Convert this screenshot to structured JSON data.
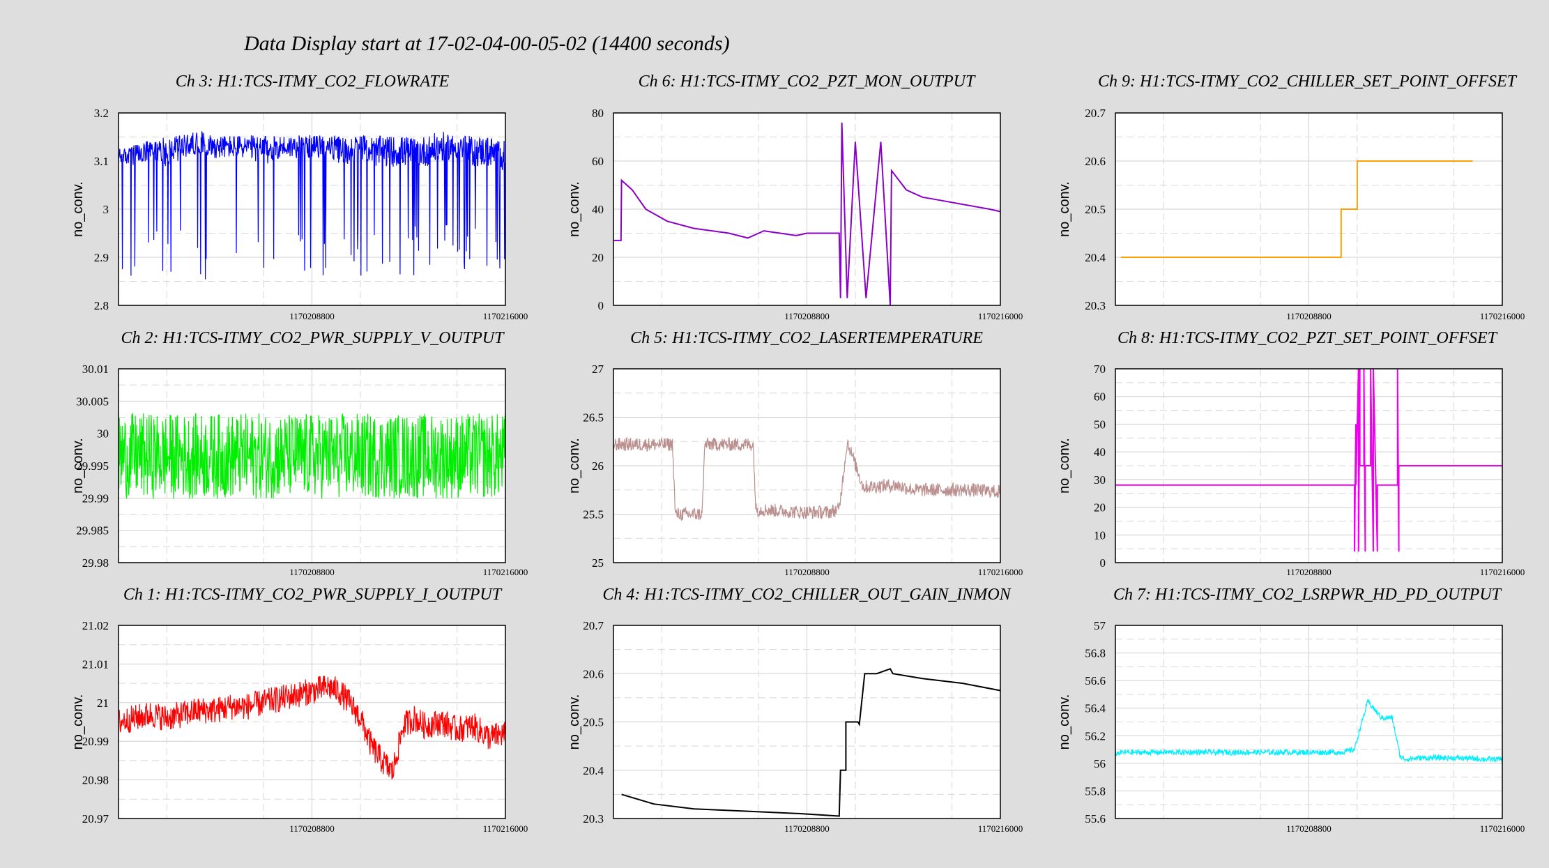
{
  "header": {
    "title": "Data Display start at 17-02-04-00-05-02 (14400 seconds)"
  },
  "chart_data": [
    {
      "type": "line",
      "title": "Ch 3: H1:TCS-ITMY_CO2_FLOWRATE",
      "ylabel": "no_conv.",
      "ylim": [
        2.8,
        3.2
      ],
      "yticks": [
        "2.8",
        "2.9",
        "3",
        "3.1",
        "3.2"
      ],
      "xticks": [
        "1170208800",
        "1170216000"
      ],
      "color": "#0000ff",
      "series": [
        {
          "x": [
            0,
            180,
            600,
            1200,
            1800,
            2400,
            3000,
            3600,
            4200,
            4800,
            5400,
            6000,
            6600,
            7200,
            7800,
            8400,
            9000,
            9600,
            10200,
            10800,
            11400,
            12000,
            12600,
            13200,
            13800,
            14400
          ],
          "y": [
            3.11,
            3.11,
            3.11,
            3.12,
            3.12,
            3.13,
            3.14,
            3.13,
            3.13,
            3.13,
            3.12,
            3.13,
            3.13,
            3.13,
            3.13,
            3.12,
            3.13,
            3.12,
            3.12,
            3.12,
            3.12,
            3.13,
            3.13,
            3.12,
            3.12,
            3.11
          ],
          "lower_envelope": [
            2.87,
            2.86,
            2.85,
            2.86,
            2.86,
            2.86,
            2.84,
            2.86,
            2.85,
            2.86,
            2.86,
            2.86,
            2.86,
            2.86,
            2.86,
            2.86,
            2.86,
            2.86,
            2.86,
            2.86,
            2.86,
            2.86,
            2.86,
            2.86,
            2.87,
            2.87
          ],
          "upper_envelope": [
            3.13,
            3.13,
            3.14,
            3.15,
            3.16,
            3.16,
            3.17,
            3.16,
            3.16,
            3.16,
            3.16,
            3.16,
            3.16,
            3.16,
            3.16,
            3.16,
            3.16,
            3.16,
            3.16,
            3.16,
            3.16,
            3.17,
            3.16,
            3.16,
            3.16,
            3.15
          ]
        }
      ]
    },
    {
      "type": "line",
      "title": "Ch 6: H1:TCS-ITMY_CO2_PZT_MON_OUTPUT",
      "ylabel": "no_conv.",
      "ylim": [
        0,
        80
      ],
      "yticks": [
        "0",
        "20",
        "40",
        "60",
        "80"
      ],
      "xticks": [
        "1170208800",
        "1170216000"
      ],
      "color": "#8b00c9",
      "series": [
        {
          "x": [
            0,
            280,
            300,
            700,
            1200,
            2000,
            3000,
            4300,
            5000,
            5600,
            6200,
            6800,
            7200,
            7800,
            8400,
            8450,
            8500,
            8700,
            9000,
            9400,
            9950,
            10300,
            10350,
            10900,
            11500,
            12000,
            13000,
            14000,
            14400
          ],
          "y": [
            27,
            27,
            52,
            48,
            40,
            35,
            32,
            30,
            28,
            31,
            30,
            29,
            30,
            30,
            30,
            3,
            76,
            3,
            68,
            3,
            68,
            0,
            56,
            48,
            45,
            44,
            42,
            40,
            39
          ]
        }
      ]
    },
    {
      "type": "line",
      "title": "Ch 9: H1:TCS-ITMY_CO2_CHILLER_SET_POINT_OFFSET",
      "ylabel": "no_conv.",
      "ylim": [
        20.3,
        20.7
      ],
      "yticks": [
        "20.3",
        "20.4",
        "20.5",
        "20.6",
        "20.7"
      ],
      "xticks": [
        "1170208800",
        "1170216000"
      ],
      "color": "#ffa000",
      "series": [
        {
          "x": [
            200,
            8400,
            8400,
            9000,
            9000,
            13300
          ],
          "y": [
            20.4,
            20.4,
            20.5,
            20.5,
            20.6,
            20.6
          ]
        }
      ]
    },
    {
      "type": "line",
      "title": "Ch 2: H1:TCS-ITMY_CO2_PWR_SUPPLY_V_OUTPUT",
      "ylabel": "no_conv.",
      "ylim": [
        29.98,
        30.01
      ],
      "yticks": [
        "29.98",
        "29.985",
        "29.99",
        "29.995",
        "30",
        "30.005",
        "30.01"
      ],
      "xticks": [
        "1170208800",
        "1170216000"
      ],
      "color": "#00ee00",
      "series": [
        {
          "x": [
            0,
            14400
          ],
          "y": [
            29.9965,
            29.9965
          ],
          "lower_envelope": [
            29.989,
            29.989
          ],
          "upper_envelope": [
            30.003,
            30.003
          ]
        }
      ]
    },
    {
      "type": "line",
      "title": "Ch 5: H1:TCS-ITMY_CO2_LASERTEMPERATURE",
      "ylabel": "no_conv.",
      "ylim": [
        25,
        27
      ],
      "yticks": [
        "25",
        "25.5",
        "26",
        "26.5",
        "27"
      ],
      "xticks": [
        "1170208800",
        "1170216000"
      ],
      "color": "#bc8f8f",
      "series": [
        {
          "x": [
            0,
            2200,
            2300,
            3300,
            3400,
            5200,
            5300,
            7000,
            8000,
            8400,
            8700,
            9300,
            10500,
            11200,
            12200,
            13300,
            14400
          ],
          "y": [
            26.22,
            26.22,
            25.5,
            25.5,
            26.22,
            26.22,
            25.55,
            25.52,
            25.52,
            25.55,
            26.25,
            25.78,
            25.8,
            25.75,
            25.75,
            25.75,
            25.73
          ],
          "spread": 0.14
        }
      ]
    },
    {
      "type": "line",
      "title": "Ch 8: H1:TCS-ITMY_CO2_PZT_SET_POINT_OFFSET",
      "ylabel": "no_conv.",
      "ylim": [
        0,
        70
      ],
      "yticks": [
        "0",
        "10",
        "20",
        "30",
        "40",
        "50",
        "60",
        "70"
      ],
      "xticks": [
        "1170208800",
        "1170216000"
      ],
      "color": "#ee00ee",
      "series": [
        {
          "x": [
            0,
            8900,
            8900,
            8950,
            8950,
            9050,
            9050,
            9100,
            9100,
            9250,
            9250,
            9300,
            9300,
            9500,
            9500,
            9600,
            9600,
            9750,
            9750,
            10500,
            10500,
            10550,
            10550,
            10600,
            10600,
            14400
          ],
          "y": [
            28,
            28,
            4,
            50,
            28,
            70,
            4,
            70,
            35,
            35,
            70,
            4,
            35,
            35,
            70,
            4,
            70,
            4,
            28,
            28,
            70,
            4,
            35,
            35,
            35,
            35
          ]
        }
      ]
    },
    {
      "type": "line",
      "title": "Ch 1: H1:TCS-ITMY_CO2_PWR_SUPPLY_I_OUTPUT",
      "ylabel": "no_conv.",
      "ylim": [
        20.97,
        21.02
      ],
      "yticks": [
        "20.97",
        "20.98",
        "20.99",
        "21",
        "21.01",
        "21.02"
      ],
      "xticks": [
        "1170208800",
        "1170216000"
      ],
      "color": "#ff0000",
      "series": [
        {
          "x": [
            0,
            600,
            1200,
            1800,
            2400,
            3000,
            3600,
            4200,
            4800,
            5400,
            6000,
            6600,
            7200,
            7800,
            8200,
            8600,
            9000,
            9400,
            9800,
            10200,
            10600,
            11000,
            11400,
            12000,
            12600,
            13200,
            13800,
            14400
          ],
          "y": [
            20.995,
            20.996,
            20.997,
            20.996,
            20.997,
            20.998,
            20.998,
            20.999,
            20.999,
            21.0,
            21.001,
            21.002,
            21.003,
            21.004,
            21.003,
            21.0,
            20.996,
            20.989,
            20.985,
            20.982,
            20.994,
            20.996,
            20.994,
            20.995,
            20.993,
            20.994,
            20.991,
            20.992
          ],
          "spread": 0.007
        }
      ]
    },
    {
      "type": "line",
      "title": "Ch 4: H1:TCS-ITMY_CO2_CHILLER_OUT_GAIN_INMON",
      "ylabel": "no_conv.",
      "ylim": [
        20.3,
        20.7
      ],
      "yticks": [
        "20.3",
        "20.4",
        "20.5",
        "20.6",
        "20.7"
      ],
      "xticks": [
        "1170208800",
        "1170216000"
      ],
      "color": "#000000",
      "series": [
        {
          "x": [
            300,
            1500,
            3000,
            5000,
            7000,
            8400,
            8450,
            8650,
            8650,
            9100,
            9150,
            9350,
            9350,
            9800,
            10300,
            10400,
            11500,
            13000,
            14400
          ],
          "y": [
            20.35,
            20.33,
            20.32,
            20.315,
            20.31,
            20.305,
            20.4,
            20.4,
            20.5,
            20.5,
            20.495,
            20.6,
            20.6,
            20.6,
            20.61,
            20.6,
            20.59,
            20.58,
            20.565
          ]
        }
      ]
    },
    {
      "type": "line",
      "title": "Ch 7: H1:TCS-ITMY_CO2_LSRPWR_HD_PD_OUTPUT",
      "ylabel": "no_conv.",
      "ylim": [
        55.6,
        57
      ],
      "yticks": [
        "55.6",
        "55.8",
        "56",
        "56.2",
        "56.4",
        "56.6",
        "56.8",
        "57"
      ],
      "xticks": [
        "1170208800",
        "1170216000"
      ],
      "color": "#00eeff",
      "series": [
        {
          "x": [
            0,
            300,
            600,
            1200,
            2400,
            3600,
            4800,
            6000,
            7200,
            8400,
            8900,
            9100,
            9400,
            9600,
            9900,
            10300,
            10600,
            10800,
            11400,
            12600,
            13800,
            14400
          ],
          "y": [
            56.07,
            56.08,
            56.08,
            56.08,
            56.08,
            56.08,
            56.08,
            56.08,
            56.08,
            56.08,
            56.1,
            56.25,
            56.45,
            56.4,
            56.33,
            56.33,
            56.05,
            56.03,
            56.04,
            56.04,
            56.03,
            56.03
          ],
          "spread": 0.04
        }
      ]
    }
  ]
}
